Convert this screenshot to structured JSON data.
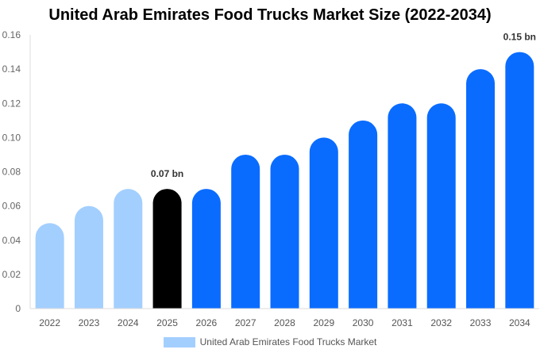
{
  "chart_data": {
    "type": "bar",
    "title": "United Arab Emirates Food Trucks Market Size (2022-2034)",
    "categories": [
      "2022",
      "2023",
      "2024",
      "2025",
      "2026",
      "2027",
      "2028",
      "2029",
      "2030",
      "2031",
      "2032",
      "2033",
      "2034"
    ],
    "series": [
      {
        "name": "United Arab Emirates Food Trucks Market",
        "values": [
          0.05,
          0.06,
          0.07,
          0.07,
          0.07,
          0.09,
          0.09,
          0.1,
          0.11,
          0.12,
          0.12,
          0.14,
          0.15
        ]
      }
    ],
    "ylim": [
      0,
      0.16
    ],
    "yticks": [
      "0",
      "0.02",
      "0.04",
      "0.06",
      "0.08",
      "0.10",
      "0.12",
      "0.14",
      "0.16"
    ],
    "annotations": [
      {
        "category": "2025",
        "text": "0.07 bn"
      },
      {
        "category": "2034",
        "text": "0.15 bn"
      }
    ],
    "colors": {
      "historical": "#a3cfff",
      "current": "#000000",
      "forecast": "#0a6cff",
      "legend": "#a3cfff"
    },
    "bar_color_groups": [
      "historical",
      "historical",
      "historical",
      "current",
      "forecast",
      "forecast",
      "forecast",
      "forecast",
      "forecast",
      "forecast",
      "forecast",
      "forecast",
      "forecast"
    ],
    "xlabel": "",
    "ylabel": "",
    "grid": false,
    "legend_position": "bottom"
  }
}
